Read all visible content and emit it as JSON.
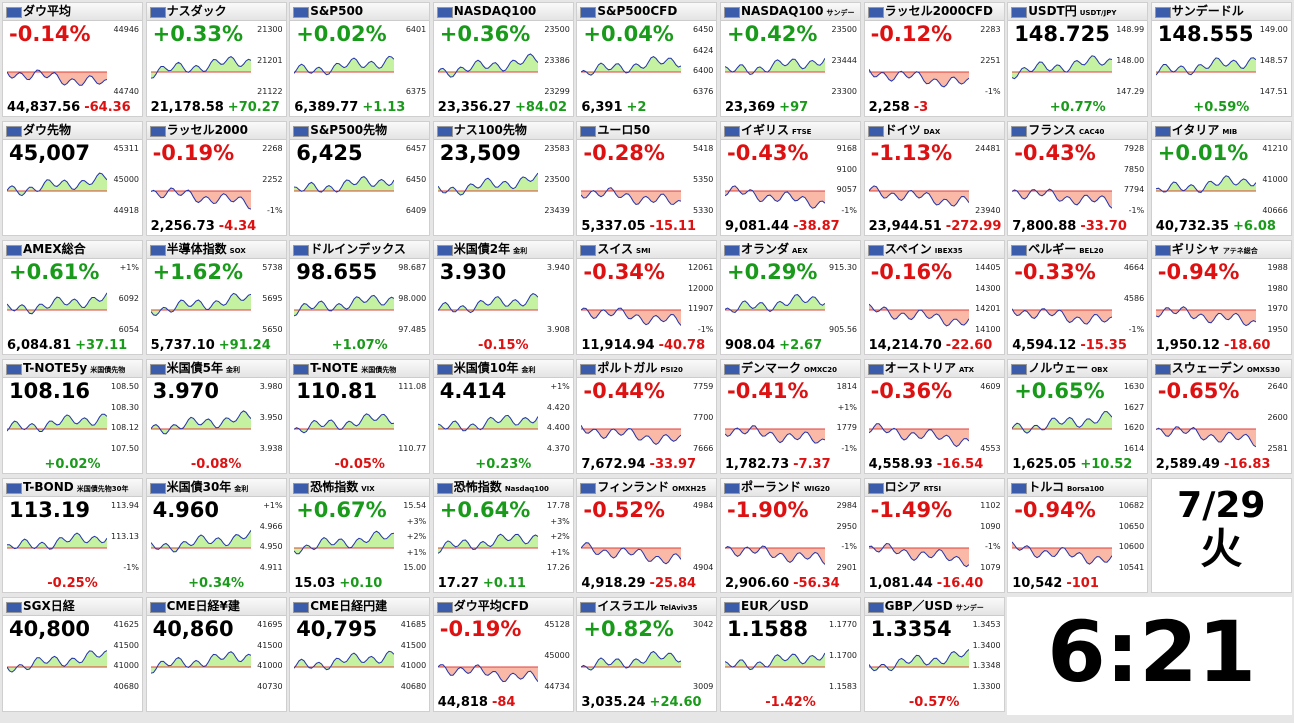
{
  "tiles": [
    {
      "name": "ダウ平均",
      "head": "-0.14%",
      "price": "44,837.56",
      "change": "-64.36",
      "labels": [
        "44946",
        "44740"
      ]
    },
    {
      "name": "ナスダック",
      "head": "+0.33%",
      "price": "21,178.58",
      "change": "+70.27",
      "labels": [
        "21300",
        "21201",
        "21122"
      ]
    },
    {
      "name": "S&P500",
      "head": "+0.02%",
      "price": "6,389.77",
      "change": "+1.13",
      "labels": [
        "6401",
        "6375"
      ]
    },
    {
      "name": "NASDAQ100",
      "head": "+0.36%",
      "price": "23,356.27",
      "change": "+84.02",
      "labels": [
        "23500",
        "23386",
        "23299"
      ]
    },
    {
      "name": "S&P500CFD",
      "head": "+0.04%",
      "price": "6,391",
      "change": "+2",
      "labels": [
        "6450",
        "6424",
        "6400",
        "6376"
      ]
    },
    {
      "name": "NASDAQ100",
      "sub": "サンデー",
      "head": "+0.42%",
      "price": "23,369",
      "change": "+97",
      "labels": [
        "23500",
        "23444",
        "23300"
      ]
    },
    {
      "name": "ラッセル2000CFD",
      "head": "-0.12%",
      "price": "2,258",
      "change": "-3",
      "labels": [
        "2283",
        "2251",
        "-1%"
      ]
    },
    {
      "name": "USDT円",
      "sub": "USDT/JPY",
      "head": "148.725",
      "foot": "+0.77%",
      "labels": [
        "148.99",
        "148.00",
        "147.29"
      ]
    },
    {
      "name": "サンデードル",
      "head": "148.555",
      "foot": "+0.59%",
      "labels": [
        "149.00",
        "148.57",
        "147.51"
      ]
    },
    {
      "name": "ダウ先物",
      "head": "45,007",
      "labels": [
        "45311",
        "45000",
        "44918"
      ]
    },
    {
      "name": "ラッセル2000",
      "head": "-0.19%",
      "price": "2,256.73",
      "change": "-4.34",
      "labels": [
        "2268",
        "2252",
        "-1%"
      ]
    },
    {
      "name": "S&P500先物",
      "head": "6,425",
      "labels": [
        "6457",
        "6450",
        "6409"
      ]
    },
    {
      "name": "ナス100先物",
      "head": "23,509",
      "labels": [
        "23583",
        "23500",
        "23439"
      ]
    },
    {
      "name": "ユーロ50",
      "head": "-0.28%",
      "price": "5,337.05",
      "change": "-15.11",
      "labels": [
        "5418",
        "5350",
        "5330"
      ]
    },
    {
      "name": "イギリス",
      "sub": "FTSE",
      "head": "-0.43%",
      "price": "9,081.44",
      "change": "-38.87",
      "labels": [
        "9168",
        "9100",
        "9057",
        "-1%"
      ]
    },
    {
      "name": "ドイツ",
      "sub": "DAX",
      "head": "-1.13%",
      "price": "23,944.51",
      "change": "-272.99",
      "labels": [
        "24481",
        "23940"
      ]
    },
    {
      "name": "フランス",
      "sub": "CAC40",
      "head": "-0.43%",
      "price": "7,800.88",
      "change": "-33.70",
      "labels": [
        "7928",
        "7850",
        "7794",
        "-1%"
      ]
    },
    {
      "name": "イタリア",
      "sub": "MIB",
      "head": "+0.01%",
      "price": "40,732.35",
      "change": "+6.08",
      "labels": [
        "41210",
        "41000",
        "40666"
      ]
    },
    {
      "name": "AMEX総合",
      "head": "+0.61%",
      "price": "6,084.81",
      "change": "+37.11",
      "labels": [
        "+1%",
        "6092",
        "6054"
      ]
    },
    {
      "name": "半導体指数",
      "sub": "SOX",
      "head": "+1.62%",
      "price": "5,737.10",
      "change": "+91.24",
      "labels": [
        "5738",
        "5695",
        "5650"
      ]
    },
    {
      "name": "ドルインデックス",
      "head": "98.655",
      "foot": "+1.07%",
      "labels": [
        "98.687",
        "98.000",
        "97.485"
      ]
    },
    {
      "name": "米国債2年",
      "sub": "金利",
      "head": "3.930",
      "foot": "-0.15%",
      "labels": [
        "3.940",
        "3.908"
      ]
    },
    {
      "name": "スイス",
      "sub": "SMI",
      "head": "-0.34%",
      "price": "11,914.94",
      "change": "-40.78",
      "labels": [
        "12061",
        "12000",
        "11907",
        "-1%"
      ]
    },
    {
      "name": "オランダ",
      "sub": "AEX",
      "head": "+0.29%",
      "price": "908.04",
      "change": "+2.67",
      "labels": [
        "915.30",
        "905.56"
      ]
    },
    {
      "name": "スペイン",
      "sub": "IBEX35",
      "head": "-0.16%",
      "price": "14,214.70",
      "change": "-22.60",
      "labels": [
        "14405",
        "14300",
        "14201",
        "14100"
      ]
    },
    {
      "name": "ベルギー",
      "sub": "BEL20",
      "head": "-0.33%",
      "price": "4,594.12",
      "change": "-15.35",
      "labels": [
        "4664",
        "4586",
        "-1%"
      ]
    },
    {
      "name": "ギリシャ",
      "sub": "アテネ総合",
      "head": "-0.94%",
      "price": "1,950.12",
      "change": "-18.60",
      "labels": [
        "1988",
        "1980",
        "1970",
        "1950"
      ]
    },
    {
      "name": "T-NOTE5y",
      "sub": "米国債先物",
      "head": "108.16",
      "foot": "+0.02%",
      "labels": [
        "108.50",
        "108.30",
        "108.12",
        "107.50"
      ]
    },
    {
      "name": "米国債5年",
      "sub": "金利",
      "head": "3.970",
      "foot": "-0.08%",
      "labels": [
        "3.980",
        "3.950",
        "3.938"
      ]
    },
    {
      "name": "T-NOTE",
      "sub": "米国債先物",
      "head": "110.81",
      "foot": "-0.05%",
      "labels": [
        "111.08",
        "110.77"
      ]
    },
    {
      "name": "米国債10年",
      "sub": "金利",
      "head": "4.414",
      "foot": "+0.23%",
      "labels": [
        "+1%",
        "4.420",
        "4.400",
        "4.370"
      ]
    },
    {
      "name": "ポルトガル",
      "sub": "PSI20",
      "head": "-0.44%",
      "price": "7,672.94",
      "change": "-33.97",
      "labels": [
        "7759",
        "7700",
        "7666"
      ]
    },
    {
      "name": "デンマーク",
      "sub": "OMXC20",
      "head": "-0.41%",
      "price": "1,782.73",
      "change": "-7.37",
      "labels": [
        "1814",
        "+1%",
        "1779",
        "-1%"
      ]
    },
    {
      "name": "オーストリア",
      "sub": "ATX",
      "head": "-0.36%",
      "price": "4,558.93",
      "change": "-16.54",
      "labels": [
        "4609",
        "4553"
      ]
    },
    {
      "name": "ノルウェー",
      "sub": "OBX",
      "head": "+0.65%",
      "price": "1,625.05",
      "change": "+10.52",
      "labels": [
        "1630",
        "1627",
        "1620",
        "1614"
      ]
    },
    {
      "name": "スウェーデン",
      "sub": "OMXS30",
      "head": "-0.65%",
      "price": "2,589.49",
      "change": "-16.83",
      "labels": [
        "2640",
        "2600",
        "2581"
      ]
    },
    {
      "name": "T-BOND",
      "sub": "米国債先物30年",
      "head": "113.19",
      "foot": "-0.25%",
      "labels": [
        "113.94",
        "113.13",
        "-1%"
      ]
    },
    {
      "name": "米国債30年",
      "sub": "金利",
      "head": "4.960",
      "foot": "+0.34%",
      "labels": [
        "+1%",
        "4.966",
        "4.950",
        "4.911"
      ]
    },
    {
      "name": "恐怖指数",
      "sub": "VIX",
      "head": "+0.67%",
      "price": "15.03",
      "change": "+0.10",
      "labels": [
        "15.54",
        "+3%",
        "+2%",
        "+1%",
        "15.00"
      ]
    },
    {
      "name": "恐怖指数",
      "sub": "Nasdaq100",
      "head": "+0.64%",
      "price": "17.27",
      "change": "+0.11",
      "labels": [
        "17.78",
        "+3%",
        "+2%",
        "+1%",
        "17.26"
      ]
    },
    {
      "name": "フィンランド",
      "sub": "OMXH25",
      "head": "-0.52%",
      "price": "4,918.29",
      "change": "-25.84",
      "labels": [
        "4984",
        "4904"
      ]
    },
    {
      "name": "ポーランド",
      "sub": "WIG20",
      "head": "-1.90%",
      "price": "2,906.60",
      "change": "-56.34",
      "labels": [
        "2984",
        "2950",
        "-1%",
        "2901"
      ]
    },
    {
      "name": "ロシア",
      "sub": "RTSI",
      "head": "-1.49%",
      "price": "1,081.44",
      "change": "-16.40",
      "labels": [
        "1102",
        "1090",
        "-1%",
        "1079"
      ]
    },
    {
      "name": "トルコ",
      "sub": "Borsa100",
      "head": "-0.94%",
      "price": "10,542",
      "change": "-101",
      "labels": [
        "10682",
        "10650",
        "10600",
        "10541"
      ]
    },
    {
      "name": "SGX日経",
      "head": "40,800",
      "labels": [
        "41625",
        "41500",
        "41000",
        "40680"
      ]
    },
    {
      "name": "CME日経¥建",
      "head": "40,860",
      "labels": [
        "41695",
        "41500",
        "41000",
        "40730"
      ]
    },
    {
      "name": "CME日経円建",
      "head": "40,795",
      "labels": [
        "41685",
        "41500",
        "41000",
        "40680"
      ]
    },
    {
      "name": "ダウ平均CFD",
      "head": "-0.19%",
      "price": "44,818",
      "change": "-84",
      "labels": [
        "45128",
        "45000",
        "44734"
      ]
    },
    {
      "name": "イスラエル",
      "sub": "TelAviv35",
      "head": "+0.82%",
      "price": "3,035.24",
      "change": "+24.60",
      "labels": [
        "3042",
        "3009"
      ]
    },
    {
      "name": "EUR／USD",
      "head": "1.1588",
      "foot": "-1.42%",
      "labels": [
        "1.1770",
        "1.1700",
        "1.1583"
      ]
    },
    {
      "name": "GBP／USD",
      "sub": "サンデー",
      "head": "1.3354",
      "foot": "-0.57%",
      "labels": [
        "1.3453",
        "1.3400",
        "1.3348",
        "1.3300"
      ]
    }
  ],
  "date": {
    "md": "7/29",
    "weekday": "火"
  },
  "clock": "6:21"
}
